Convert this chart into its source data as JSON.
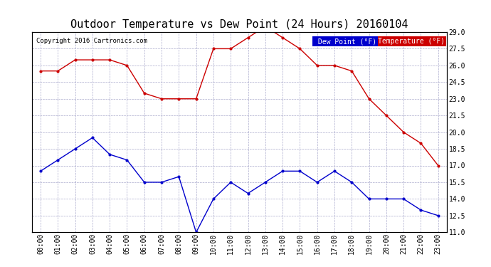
{
  "title": "Outdoor Temperature vs Dew Point (24 Hours) 20160104",
  "copyright": "Copyright 2016 Cartronics.com",
  "x_labels": [
    "00:00",
    "01:00",
    "02:00",
    "03:00",
    "04:00",
    "05:00",
    "06:00",
    "07:00",
    "08:00",
    "09:00",
    "10:00",
    "11:00",
    "12:00",
    "13:00",
    "14:00",
    "15:00",
    "16:00",
    "17:00",
    "18:00",
    "19:00",
    "20:00",
    "21:00",
    "22:00",
    "23:00"
  ],
  "temperature": [
    25.5,
    25.5,
    26.5,
    26.5,
    26.5,
    26.0,
    23.5,
    23.0,
    23.0,
    23.0,
    27.5,
    27.5,
    28.5,
    29.5,
    28.5,
    27.5,
    26.0,
    26.0,
    25.5,
    23.0,
    21.5,
    20.0,
    19.0,
    17.0
  ],
  "dew_point": [
    16.5,
    17.5,
    18.5,
    19.5,
    18.0,
    17.5,
    15.5,
    15.5,
    16.0,
    11.0,
    14.0,
    15.5,
    14.5,
    15.5,
    16.5,
    16.5,
    15.5,
    16.5,
    15.5,
    14.0,
    14.0,
    14.0,
    13.0,
    12.5
  ],
  "temp_color": "#cc0000",
  "dew_color": "#0000cc",
  "ylim": [
    11.0,
    29.0
  ],
  "yticks": [
    11.0,
    12.5,
    14.0,
    15.5,
    17.0,
    18.5,
    20.0,
    21.5,
    23.0,
    24.5,
    26.0,
    27.5,
    29.0
  ],
  "background_color": "#ffffff",
  "grid_color": "#aaaacc",
  "legend_dew_bg": "#0000cc",
  "legend_temp_bg": "#cc0000",
  "title_fontsize": 11,
  "tick_fontsize": 7
}
